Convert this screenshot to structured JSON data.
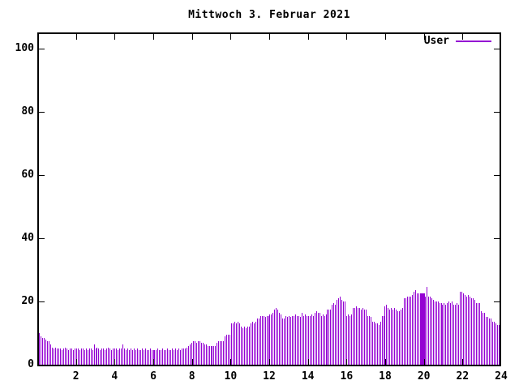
{
  "title": "Mittwoch 3. Februar 2021",
  "legend": {
    "label": "User",
    "color": "#9400d3"
  },
  "colors": {
    "bar": "#9400d3",
    "axis": "#000000",
    "background": "#ffffff"
  },
  "axes": {
    "x_tick_labels": [
      2,
      4,
      6,
      8,
      10,
      12,
      14,
      16,
      18,
      20,
      22,
      24
    ],
    "y_tick_labels": [
      0,
      20,
      40,
      60,
      80,
      100
    ]
  },
  "chart_data": {
    "type": "bar",
    "title": "Mittwoch 3. Februar 2021",
    "xlabel": "",
    "ylabel": "",
    "x_range_hours": [
      0,
      24
    ],
    "y_range": [
      0,
      105
    ],
    "grid": false,
    "legend_position": "top-right-inside",
    "interval_minutes": 5,
    "series": [
      {
        "name": "User",
        "values": [
          10,
          9,
          8.5,
          8.5,
          8,
          7.5,
          7.5,
          6.5,
          5.5,
          5,
          5.5,
          5,
          5,
          5,
          4.5,
          5,
          5.5,
          5,
          4.5,
          5,
          5,
          4.5,
          5,
          5,
          5,
          4.5,
          5,
          5,
          4.5,
          5,
          4.5,
          5,
          5,
          4.5,
          6.5,
          5,
          5.5,
          5,
          4.5,
          5,
          5,
          4.5,
          5,
          5.5,
          5,
          4.5,
          5,
          5,
          5,
          4.5,
          5,
          5,
          6.5,
          5,
          4.5,
          5,
          4.5,
          5,
          4.5,
          5,
          4.5,
          5,
          4.5,
          4.5,
          5,
          4.5,
          5,
          4.5,
          4.5,
          5,
          4.5,
          4.5,
          4.5,
          4.5,
          5,
          4.5,
          4.5,
          5,
          4.5,
          4.5,
          5,
          4.5,
          4.5,
          5,
          4.5,
          5,
          4.5,
          5,
          4.5,
          5,
          5,
          5,
          5.5,
          6,
          6.5,
          7,
          7.5,
          7.5,
          7,
          7.5,
          7.5,
          7,
          7,
          6.5,
          6.5,
          6,
          6,
          6,
          6,
          6,
          6,
          7,
          7.5,
          7.5,
          7.5,
          7.5,
          9,
          9.5,
          9.5,
          9.5,
          13,
          13,
          13.5,
          13,
          13.5,
          13,
          12,
          11.5,
          12,
          11.5,
          12,
          12,
          13,
          13.5,
          13,
          13.5,
          14.5,
          14.5,
          15.5,
          15.5,
          15.5,
          15,
          15.5,
          15.5,
          16,
          16,
          16.5,
          17.5,
          18,
          17.5,
          16.5,
          16,
          14.5,
          14.5,
          15.5,
          15,
          15.5,
          15,
          15.5,
          15.5,
          16,
          15.5,
          15.5,
          15,
          16.5,
          15.5,
          16,
          15.5,
          15.5,
          15.5,
          16,
          15.5,
          16.5,
          17,
          16.5,
          16.5,
          15.5,
          16,
          15.5,
          16,
          17.5,
          17.5,
          17.5,
          19,
          19.5,
          19,
          20.5,
          21,
          21.5,
          20.5,
          20,
          20,
          15.5,
          16,
          15.5,
          16,
          18,
          18,
          18.5,
          18,
          18,
          17.5,
          18,
          17.5,
          17.5,
          15.5,
          15.5,
          15,
          13.5,
          13.5,
          13,
          13,
          12.5,
          13.5,
          15.5,
          15.5,
          18.5,
          19,
          18,
          17.5,
          18,
          17.5,
          18,
          17.5,
          17,
          17,
          17.5,
          18,
          21,
          21,
          21.5,
          21.5,
          21.5,
          22,
          23,
          23.5,
          22.5,
          22.5,
          22,
          22.5,
          22,
          21.5,
          24.5,
          21.5,
          21.5,
          21,
          20.5,
          20,
          20,
          20,
          19.5,
          19.5,
          19,
          19.5,
          19,
          19.5,
          20,
          19.5,
          20,
          19,
          19,
          19.5,
          19,
          23,
          23,
          22.5,
          22,
          21.5,
          22,
          21.5,
          21,
          21,
          20.5,
          19.5,
          19.5,
          19.5,
          17,
          16.5,
          16.5,
          15,
          15,
          14.5,
          14.5,
          13.5,
          13.5,
          13,
          12.5,
          12.5
        ]
      }
    ],
    "solid_block": {
      "start_hour": 19.88,
      "end_hour": 20.15,
      "value": 22.5
    }
  }
}
